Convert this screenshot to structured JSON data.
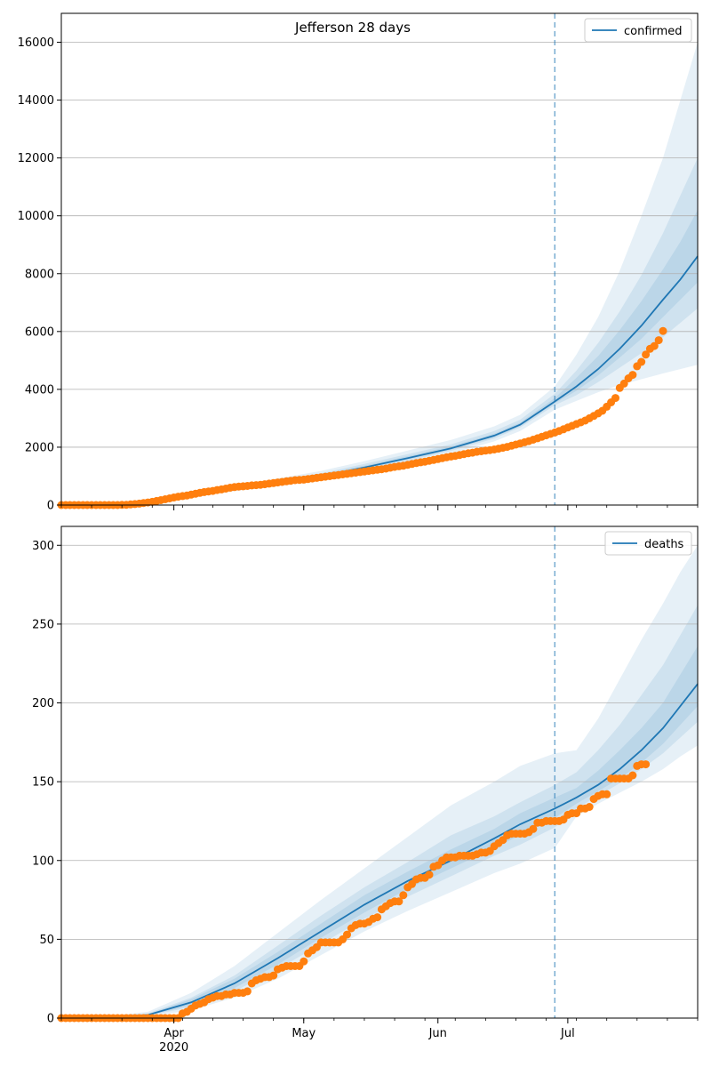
{
  "figure": {
    "title": "Jefferson 28 days"
  },
  "colors": {
    "model_line": "#1f77b4",
    "observed": "#ff7f0e",
    "band": "#1f77b4",
    "cutoff": "#1f77b4",
    "grid": "#b0b0b0"
  },
  "chart_data": [
    {
      "type": "line",
      "name": "confirmed-panel",
      "title": "Jefferson 28 days",
      "xlabel": "",
      "ylabel": "",
      "x_range": [
        "2020-03-06",
        "2020-07-31"
      ],
      "ylim": [
        0,
        17000
      ],
      "y_ticks": [
        0,
        2000,
        4000,
        6000,
        8000,
        10000,
        12000,
        14000,
        16000
      ],
      "x_ticks": [
        {
          "date": "2020-04-01",
          "label": "Apr",
          "sublabel": "2020"
        },
        {
          "date": "2020-05-01",
          "label": "May",
          "sublabel": ""
        },
        {
          "date": "2020-06-01",
          "label": "Jun",
          "sublabel": ""
        },
        {
          "date": "2020-07-01",
          "label": "Jul",
          "sublabel": ""
        }
      ],
      "cutoff_date": "2020-06-28",
      "grid": "horizontal",
      "legend": {
        "position": "top-right",
        "entries": [
          "confirmed"
        ]
      },
      "series": [
        {
          "name": "confirmed",
          "kind": "model",
          "x": [
            "2020-03-06",
            "2020-03-16",
            "2020-03-26",
            "2020-04-05",
            "2020-04-15",
            "2020-04-25",
            "2020-05-05",
            "2020-05-15",
            "2020-05-25",
            "2020-06-04",
            "2020-06-14",
            "2020-06-20",
            "2020-06-28",
            "2020-07-03",
            "2020-07-08",
            "2020-07-13",
            "2020-07-18",
            "2020-07-23",
            "2020-07-27",
            "2020-07-31"
          ],
          "y": [
            0,
            30,
            100,
            350,
            550,
            780,
            1000,
            1300,
            1620,
            1960,
            2400,
            2780,
            3580,
            4100,
            4700,
            5400,
            6200,
            7100,
            7800,
            8600
          ],
          "bands": [
            {
              "lower": [
                0,
                25,
                80,
                300,
                480,
                680,
                880,
                1150,
                1450,
                1780,
                2200,
                2560,
                3300,
                3600,
                3900,
                4150,
                4350,
                4550,
                4700,
                4850
              ],
              "upper": [
                0,
                35,
                120,
                400,
                650,
                920,
                1180,
                1520,
                1880,
                2250,
                2720,
                3120,
                4100,
                5200,
                6500,
                8100,
                10000,
                12000,
                14000,
                16000
              ]
            },
            {
              "lower": [
                0,
                27,
                90,
                320,
                510,
                730,
                940,
                1230,
                1530,
                1870,
                2300,
                2680,
                3450,
                3800,
                4250,
                4750,
                5250,
                5800,
                6300,
                6800
              ],
              "upper": [
                0,
                33,
                110,
                380,
                600,
                860,
                1100,
                1420,
                1760,
                2100,
                2560,
                2950,
                3850,
                4650,
                5600,
                6700,
                7950,
                9400,
                10700,
                12000
              ]
            },
            {
              "lower": [
                0,
                28,
                95,
                335,
                530,
                755,
                970,
                1265,
                1580,
                1915,
                2350,
                2730,
                3520,
                3950,
                4480,
                5100,
                5750,
                6500,
                7100,
                7700
              ],
              "upper": [
                0,
                32,
                105,
                365,
                575,
                820,
                1050,
                1360,
                1690,
                2030,
                2470,
                2850,
                3700,
                4400,
                5150,
                6050,
                7050,
                8150,
                9100,
                10200
              ]
            }
          ]
        },
        {
          "name": "observed confirmed",
          "kind": "observed",
          "start_date": "2020-03-06",
          "cumulative": [
            0,
            0,
            0,
            0,
            0,
            0,
            0,
            0,
            0,
            0,
            0,
            0,
            0,
            0,
            5,
            10,
            20,
            35,
            50,
            70,
            90,
            110,
            140,
            170,
            200,
            230,
            260,
            290,
            310,
            330,
            360,
            390,
            420,
            450,
            470,
            490,
            520,
            540,
            570,
            600,
            620,
            640,
            650,
            660,
            680,
            690,
            700,
            720,
            740,
            760,
            780,
            800,
            820,
            840,
            860,
            870,
            880,
            900,
            920,
            940,
            960,
            980,
            1000,
            1020,
            1040,
            1060,
            1080,
            1100,
            1120,
            1140,
            1160,
            1180,
            1200,
            1220,
            1240,
            1260,
            1290,
            1320,
            1340,
            1360,
            1390,
            1420,
            1450,
            1480,
            1500,
            1530,
            1560,
            1590,
            1620,
            1650,
            1680,
            1700,
            1730,
            1760,
            1790,
            1810,
            1840,
            1860,
            1880,
            1900,
            1920,
            1950,
            1980,
            2010,
            2050,
            2090,
            2130,
            2170,
            2210,
            2260,
            2310,
            2360,
            2410,
            2460,
            2510,
            2560,
            2620,
            2680,
            2740,
            2800,
            2860,
            2920,
            3000,
            3080,
            3170,
            3260,
            3400,
            3550,
            3700,
            4050,
            4200,
            4380,
            4500,
            4800,
            4950,
            5200,
            5400,
            5500,
            5700,
            6020
          ]
        }
      ]
    },
    {
      "type": "line",
      "name": "deaths-panel",
      "title": "",
      "xlabel": "",
      "ylabel": "",
      "x_range": [
        "2020-03-06",
        "2020-07-31"
      ],
      "ylim": [
        0,
        312
      ],
      "y_ticks": [
        0,
        50,
        100,
        150,
        200,
        250,
        300
      ],
      "x_ticks": [
        {
          "date": "2020-04-01",
          "label": "Apr",
          "sublabel": "2020"
        },
        {
          "date": "2020-05-01",
          "label": "May",
          "sublabel": ""
        },
        {
          "date": "2020-06-01",
          "label": "Jun",
          "sublabel": ""
        },
        {
          "date": "2020-07-01",
          "label": "Jul",
          "sublabel": ""
        }
      ],
      "cutoff_date": "2020-06-28",
      "grid": "horizontal",
      "legend": {
        "position": "top-right",
        "entries": [
          "deaths"
        ]
      },
      "series": [
        {
          "name": "deaths",
          "kind": "model",
          "x": [
            "2020-03-06",
            "2020-03-16",
            "2020-03-26",
            "2020-04-05",
            "2020-04-15",
            "2020-04-25",
            "2020-05-05",
            "2020-05-15",
            "2020-05-25",
            "2020-06-04",
            "2020-06-14",
            "2020-06-20",
            "2020-06-28",
            "2020-07-03",
            "2020-07-08",
            "2020-07-13",
            "2020-07-18",
            "2020-07-23",
            "2020-07-27",
            "2020-07-31"
          ],
          "y": [
            0,
            0.5,
            2,
            10,
            22,
            38,
            55,
            72,
            87,
            100,
            114,
            123,
            133,
            140,
            148,
            158,
            170,
            184,
            198,
            212
          ],
          "bands": [
            {
              "lower": [
                0,
                0.2,
                1,
                5,
                13,
                25,
                40,
                55,
                68,
                80,
                92,
                98,
                108,
                128,
                136,
                143,
                150,
                158,
                166,
                173
              ],
              "upper": [
                0,
                1,
                4,
                16,
                33,
                54,
                75,
                95,
                115,
                135,
                150,
                160,
                168,
                170,
                190,
                215,
                240,
                263,
                283,
                300
              ]
            },
            {
              "lower": [
                0,
                0.3,
                1.5,
                7,
                17,
                31,
                47,
                63,
                77,
                90,
                103,
                110,
                121,
                133,
                141,
                149,
                158,
                168,
                178,
                188
              ],
              "upper": [
                0,
                0.8,
                3,
                13,
                27,
                46,
                65,
                83,
                99,
                116,
                128,
                137,
                148,
                156,
                170,
                186,
                205,
                224,
                243,
                262
              ]
            },
            {
              "lower": [
                0,
                0.4,
                1.8,
                8,
                19,
                34,
                51,
                67,
                82,
                95,
                108,
                116,
                127,
                136,
                144,
                152,
                162,
                174,
                186,
                198
              ],
              "upper": [
                0,
                0.6,
                2.5,
                12,
                25,
                42,
                60,
                78,
                93,
                107,
                120,
                130,
                140,
                146,
                157,
                170,
                184,
                200,
                218,
                236
              ]
            }
          ]
        },
        {
          "name": "observed deaths",
          "kind": "observed",
          "start_date": "2020-03-06",
          "cumulative": [
            0,
            0,
            0,
            0,
            0,
            0,
            0,
            0,
            0,
            0,
            0,
            0,
            0,
            0,
            0,
            0,
            0,
            0,
            0,
            0,
            0,
            0,
            0,
            0,
            0,
            0,
            0,
            0,
            3,
            4,
            6,
            8,
            9,
            10,
            12,
            13,
            14,
            14,
            15,
            15,
            16,
            16,
            16,
            17,
            22,
            24,
            25,
            26,
            26,
            27,
            31,
            32,
            33,
            33,
            33,
            33,
            36,
            41,
            43,
            45,
            48,
            48,
            48,
            48,
            48,
            50,
            53,
            57,
            59,
            60,
            60,
            61,
            63,
            64,
            69,
            71,
            73,
            74,
            74,
            78,
            83,
            85,
            88,
            89,
            89,
            91,
            96,
            97,
            100,
            102,
            102,
            102,
            103,
            103,
            103,
            103,
            104,
            105,
            105,
            106,
            109,
            111,
            113,
            116,
            117,
            117,
            117,
            117,
            118,
            120,
            124,
            124,
            125,
            125,
            125,
            125,
            126,
            129,
            130,
            130,
            133,
            133,
            134,
            139,
            141,
            142,
            142,
            152,
            152,
            152,
            152,
            152,
            154,
            160,
            161,
            161
          ]
        }
      ]
    }
  ]
}
